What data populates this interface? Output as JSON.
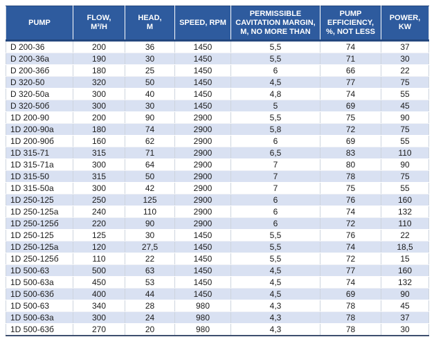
{
  "colors": {
    "header_bg": "#2E5B9E",
    "header_rule": "#24477E",
    "row_alt": "#D9E1F2",
    "grid": "#CDD4DE",
    "bottom_border": "#3D4E6E",
    "text": "#1A1A1A"
  },
  "chart_data": {
    "type": "table",
    "title": "Pump specifications table",
    "columns": [
      "PUMP",
      "FLOW,\nM³/H",
      "HEAD,\nM",
      "SPEED, RPM",
      "PERMISSIBLE\nCAVITATION MARGIN,\nM, NO MORE THAN",
      "PUMP\nEFFICIENCY,\n%, NOT LESS",
      "POWER,\nKW"
    ],
    "rows": [
      [
        "D 200-36",
        "200",
        "36",
        "1450",
        "5,5",
        "74",
        "37"
      ],
      [
        "D 200-36a",
        "190",
        "30",
        "1450",
        "5,5",
        "71",
        "30"
      ],
      [
        "D 200-36б",
        "180",
        "25",
        "1450",
        "6",
        "66",
        "22"
      ],
      [
        "D 320-50",
        "320",
        "50",
        "1450",
        "4,5",
        "77",
        "75"
      ],
      [
        "D 320-50a",
        "300",
        "40",
        "1450",
        "4,8",
        "74",
        "55"
      ],
      [
        "D 320-50б",
        "300",
        "30",
        "1450",
        "5",
        "69",
        "45"
      ],
      [
        "1D 200-90",
        "200",
        "90",
        "2900",
        "5,5",
        "75",
        "90"
      ],
      [
        "1D 200-90a",
        "180",
        "74",
        "2900",
        "5,8",
        "72",
        "75"
      ],
      [
        "1D 200-90б",
        "160",
        "62",
        "2900",
        "6",
        "69",
        "55"
      ],
      [
        "1D 315-71",
        "315",
        "71",
        "2900",
        "6,5",
        "83",
        "110"
      ],
      [
        "1D 315-71a",
        "300",
        "64",
        "2900",
        "7",
        "80",
        "90"
      ],
      [
        "1D 315-50",
        "315",
        "50",
        "2900",
        "7",
        "78",
        "75"
      ],
      [
        "1D 315-50a",
        "300",
        "42",
        "2900",
        "7",
        "75",
        "55"
      ],
      [
        "1D 250-125",
        "250",
        "125",
        "2900",
        "6",
        "76",
        "160"
      ],
      [
        "1D 250-125a",
        "240",
        "110",
        "2900",
        "6",
        "74",
        "132"
      ],
      [
        "1D 250-125б",
        "220",
        "90",
        "2900",
        "6",
        "72",
        "110"
      ],
      [
        "1D 250-125",
        "125",
        "30",
        "1450",
        "5,5",
        "76",
        "22"
      ],
      [
        "1D 250-125a",
        "120",
        "27,5",
        "1450",
        "5,5",
        "74",
        "18,5"
      ],
      [
        "1D 250-125б",
        "110",
        "22",
        "1450",
        "5,5",
        "72",
        "15"
      ],
      [
        "1D 500-63",
        "500",
        "63",
        "1450",
        "4,5",
        "77",
        "160"
      ],
      [
        "1D 500-63a",
        "450",
        "53",
        "1450",
        "4,5",
        "74",
        "132"
      ],
      [
        "1D 500-63б",
        "400",
        "44",
        "1450",
        "4,5",
        "69",
        "90"
      ],
      [
        "1D 500-63",
        "340",
        "28",
        "980",
        "4,3",
        "78",
        "45"
      ],
      [
        "1D 500-63a",
        "300",
        "24",
        "980",
        "4,3",
        "78",
        "37"
      ],
      [
        "1D 500-63б",
        "270",
        "20",
        "980",
        "4,3",
        "78",
        "30"
      ]
    ]
  }
}
